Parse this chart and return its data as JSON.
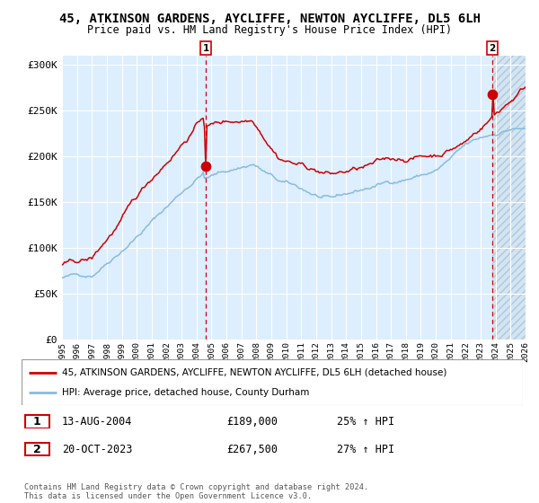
{
  "title": "45, ATKINSON GARDENS, AYCLIFFE, NEWTON AYCLIFFE, DL5 6LH",
  "subtitle": "Price paid vs. HM Land Registry's House Price Index (HPI)",
  "bg_color": "#ddeeff",
  "hatch_color": "#c8dced",
  "grid_color": "#ffffff",
  "red_line_color": "#cc0000",
  "blue_line_color": "#88bbdd",
  "point1_x": 2004.62,
  "point1_y": 189000,
  "point2_x": 2023.79,
  "point2_y": 267500,
  "vline1_x": 2004.62,
  "vline2_x": 2023.79,
  "xmin": 1995,
  "xmax": 2026,
  "ymin": 0,
  "ymax": 310000,
  "yticks": [
    0,
    50000,
    100000,
    150000,
    200000,
    250000,
    300000
  ],
  "ytick_labels": [
    "£0",
    "£50K",
    "£100K",
    "£150K",
    "£200K",
    "£250K",
    "£300K"
  ],
  "xtick_vals": [
    1995,
    1996,
    1997,
    1998,
    1999,
    2000,
    2001,
    2002,
    2003,
    2004,
    2005,
    2006,
    2007,
    2008,
    2009,
    2010,
    2011,
    2012,
    2013,
    2014,
    2015,
    2016,
    2017,
    2018,
    2019,
    2020,
    2021,
    2022,
    2023,
    2024,
    2025,
    2026
  ],
  "legend_red_label": "45, ATKINSON GARDENS, AYCLIFFE, NEWTON AYCLIFFE, DL5 6LH (detached house)",
  "legend_blue_label": "HPI: Average price, detached house, County Durham",
  "table_row1": [
    "1",
    "13-AUG-2004",
    "£189,000",
    "25% ↑ HPI"
  ],
  "table_row2": [
    "2",
    "20-OCT-2023",
    "£267,500",
    "27% ↑ HPI"
  ],
  "footer": "Contains HM Land Registry data © Crown copyright and database right 2024.\nThis data is licensed under the Open Government Licence v3.0."
}
